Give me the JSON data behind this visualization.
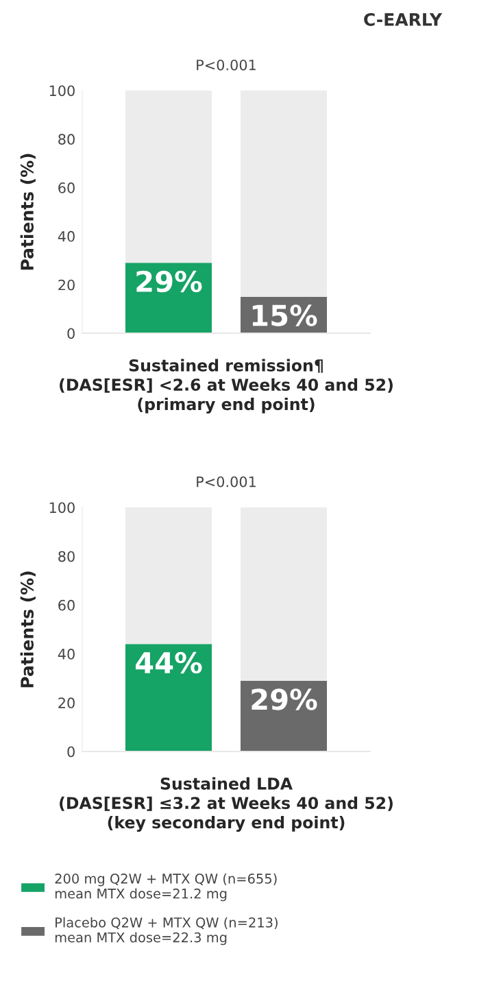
{
  "chart_data": [
    {
      "type": "bar",
      "title": "C-EARLY",
      "annotations": [
        "P<0.001"
      ],
      "ylabel": "Patients (%)",
      "xlabel": "Sustained remission¶\n(DAS[ESR] <2.6 at Weeks 40 and 52)\n(primary end point)",
      "categories": [
        null,
        null
      ],
      "stacked": true,
      "ylim": [
        0,
        100
      ],
      "yticks": [
        0,
        20,
        40,
        60,
        80,
        100
      ],
      "grid": false,
      "legend": false,
      "series": [
        {
          "color": "#15a366",
          "values": [
            29,
            null
          ],
          "value_labels": [
            "29%",
            null
          ]
        },
        {
          "color": "#6a6a6a",
          "values": [
            null,
            15
          ],
          "value_labels": [
            null,
            "15%"
          ]
        },
        {
          "color": "#ececec",
          "values": [
            71,
            85
          ]
        }
      ]
    },
    {
      "type": "bar",
      "annotations": [
        "P<0.001"
      ],
      "ylabel": "Patients (%)",
      "xlabel": "Sustained LDA\n(DAS[ESR] ≤3.2 at Weeks 40 and 52)\n(key secondary end point)",
      "categories": [
        null,
        null
      ],
      "stacked": true,
      "ylim": [
        0,
        100
      ],
      "yticks": [
        0,
        20,
        40,
        60,
        80,
        100
      ],
      "grid": false,
      "legend": "bottom",
      "series": [
        {
          "name": "200 mg Q2W + MTX QW (n=655)\nmean MTX dose=21.2 mg",
          "color": "#15a366",
          "values": [
            44,
            null
          ],
          "value_labels": [
            "44%",
            null
          ]
        },
        {
          "name": "Placebo Q2W + MTX QW (n=213)\nmean MTX dose=22.3 mg",
          "color": "#6a6a6a",
          "values": [
            null,
            29
          ],
          "value_labels": [
            null,
            "29%"
          ]
        },
        {
          "color": "#ececec",
          "values": [
            56,
            71
          ]
        }
      ]
    }
  ]
}
